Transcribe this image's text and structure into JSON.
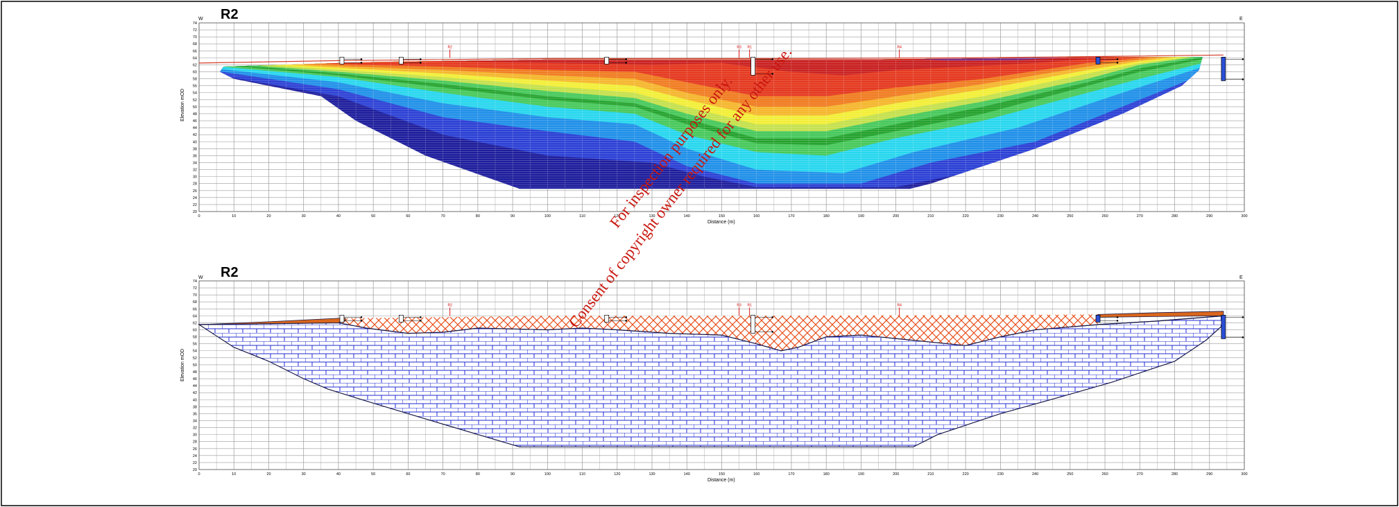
{
  "panels": [
    {
      "title": "R2",
      "dir_left": "W",
      "dir_right": "E",
      "ylabel": "Elevation mOD",
      "xlabel": "Distance (m)",
      "fill": "resistivity"
    },
    {
      "title": "R2",
      "dir_left": "W",
      "dir_right": "E",
      "ylabel": "Elevation mOD",
      "xlabel": "Distance (m)",
      "fill": "geology"
    }
  ],
  "axis": {
    "x_ticks": [
      0,
      10,
      20,
      30,
      40,
      50,
      60,
      70,
      80,
      90,
      100,
      110,
      120,
      130,
      140,
      150,
      160,
      170,
      180,
      190,
      200,
      210,
      220,
      230,
      240,
      250,
      260,
      270,
      280,
      290,
      300
    ],
    "y_ticks": [
      20,
      22,
      24,
      26,
      28,
      30,
      32,
      34,
      36,
      38,
      40,
      42,
      44,
      46,
      48,
      50,
      52,
      54,
      56,
      58,
      60,
      62,
      64,
      66,
      68,
      70,
      72,
      74
    ],
    "xlim": [
      0,
      300
    ],
    "ylim": [
      20,
      74
    ]
  },
  "markers": [
    {
      "label": "R2",
      "x": 72
    },
    {
      "label": "R3",
      "x": 155
    },
    {
      "label": "R1",
      "x": 158
    },
    {
      "label": "R4",
      "x": 201
    }
  ],
  "boreholes": [
    {
      "x": 41,
      "label": "TP1"
    },
    {
      "x": 58,
      "label": "BH1"
    },
    {
      "x": 117,
      "label": "BH2"
    },
    {
      "x": 159,
      "label": "BH3"
    },
    {
      "x": 258,
      "label": "TP2"
    },
    {
      "x": 294,
      "label": "BH4"
    }
  ],
  "colors": {
    "resistivity_scale": [
      "#1c1c9c",
      "#2a3fd4",
      "#1e8fe8",
      "#26d6ee",
      "#46c85a",
      "#23a12c",
      "#c4e04a",
      "#f2ee35",
      "#f5b52a",
      "#f07a1e",
      "#e4361c",
      "#c81e1e",
      "#7a2a86"
    ],
    "limestone_fill": "#ffffff",
    "limestone_line": "#1f2ad0",
    "overburden_line": "#e8501c",
    "topsoil": "#d9661c",
    "outline": "#1a1a4a",
    "watermark": "#c8170f"
  },
  "watermark": {
    "line1": "For inspection purposes only.",
    "line2": "Consent of copyright owner required for any other use."
  }
}
